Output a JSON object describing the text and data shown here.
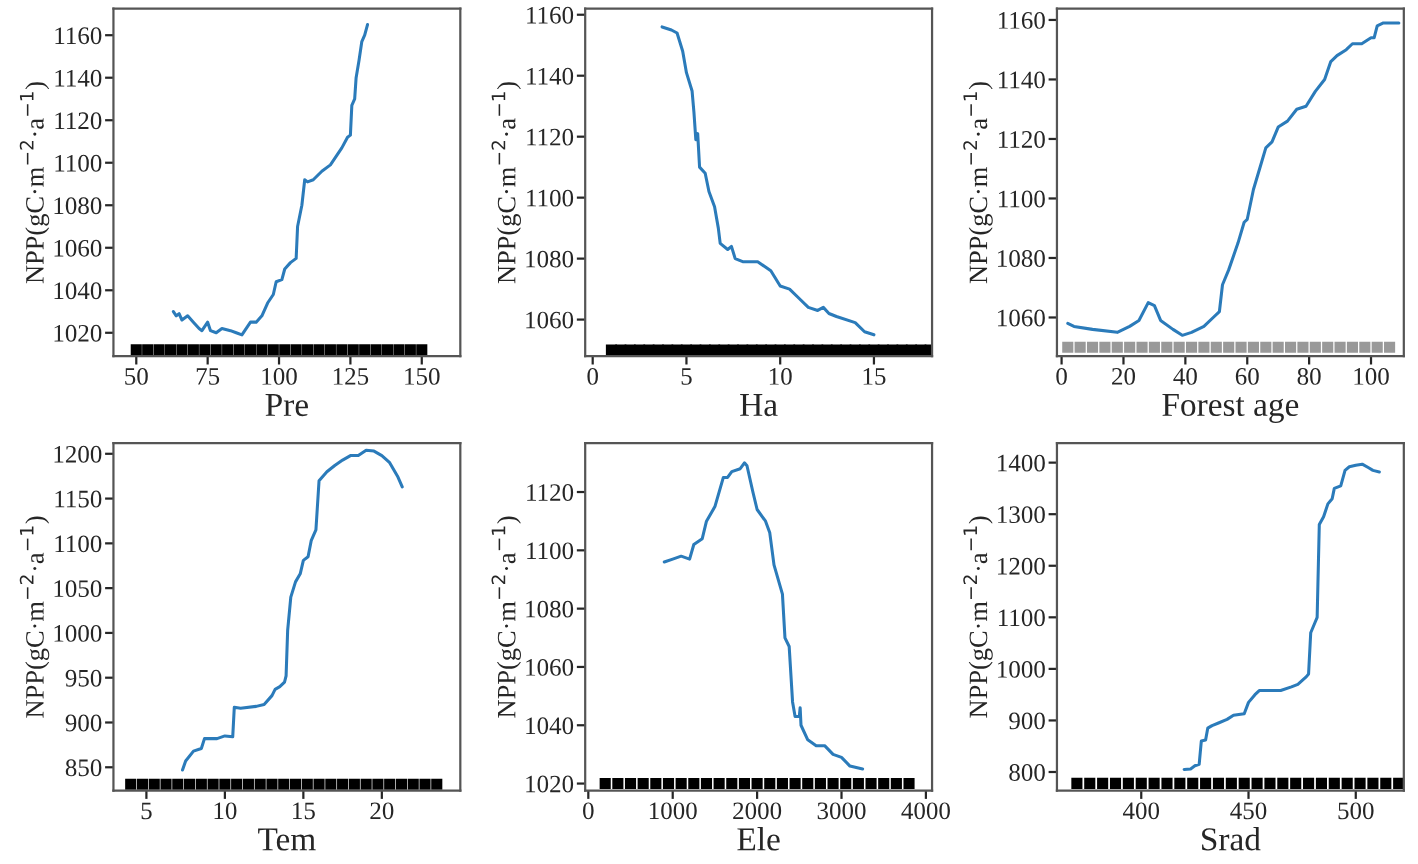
{
  "chart_data": [
    {
      "type": "line",
      "xlabel": "Pre",
      "ylabel": "NPP(gC·m$^{−2}$·a$^{−1}$)",
      "xlim": [
        42,
        163.5
      ],
      "ylim": [
        1009,
        1172.5
      ],
      "xticks": [
        50,
        75,
        100,
        125,
        150
      ],
      "yticks": [
        1020,
        1040,
        1060,
        1080,
        1100,
        1120,
        1140,
        1160
      ],
      "grid": false,
      "legend": false,
      "series": [
        {
          "color": "#2b7bba",
          "x": [
            63,
            64,
            65,
            66,
            68,
            70,
            72,
            73,
            74,
            75,
            76,
            78,
            80,
            83,
            85,
            87,
            88,
            90,
            92,
            94,
            96,
            98,
            99,
            101,
            102,
            104,
            106,
            106.5,
            108,
            109,
            110,
            112,
            115,
            118,
            120,
            122,
            124,
            125,
            125.5,
            126.5,
            127,
            128,
            129,
            130,
            131
          ],
          "values": [
            1030,
            1028,
            1029,
            1026,
            1028,
            1025,
            1022,
            1021,
            1023,
            1025,
            1021,
            1020,
            1022,
            1021,
            1020,
            1019,
            1021,
            1025,
            1025,
            1028,
            1034,
            1038,
            1044,
            1045,
            1050,
            1053,
            1055,
            1070,
            1080,
            1092,
            1091,
            1092,
            1096,
            1099,
            1103,
            1107,
            1112,
            1113,
            1127,
            1130,
            1140,
            1148,
            1157,
            1160,
            1165
          ]
        },
        {
          "type": "scatter",
          "marker": "square",
          "color": "#000000",
          "x": [
            50,
            54,
            58,
            62,
            66,
            70,
            74,
            78,
            82,
            86,
            90,
            94,
            98,
            102,
            106,
            110,
            114,
            118,
            122,
            126,
            130,
            134,
            138,
            142,
            146,
            150
          ],
          "values": [
            1012,
            1012,
            1012,
            1012,
            1012,
            1012,
            1012,
            1012,
            1012,
            1012,
            1012,
            1012,
            1012,
            1012,
            1012,
            1012,
            1012,
            1012,
            1012,
            1012,
            1012,
            1012,
            1012,
            1012,
            1012,
            1012
          ]
        }
      ]
    },
    {
      "type": "line",
      "xlabel": "Ha",
      "ylabel": "NPP(gC·m$^{−2}$·a$^{−1}$)",
      "xlim": [
        -0.4,
        18.1
      ],
      "ylim": [
        1048,
        1162
      ],
      "xticks": [
        0,
        5,
        10,
        15
      ],
      "yticks": [
        1060,
        1080,
        1100,
        1120,
        1140,
        1160
      ],
      "grid": false,
      "legend": false,
      "series": [
        {
          "color": "#2b7bba",
          "x": [
            3.7,
            4.2,
            4.5,
            4.8,
            5,
            5.3,
            5.4,
            5.5,
            5.6,
            5.7,
            6,
            6.2,
            6.5,
            6.7,
            6.8,
            7.2,
            7.4,
            7.6,
            8,
            8.8,
            9.5,
            10,
            10.5,
            11,
            11.5,
            12,
            12.3,
            12.6,
            13,
            14,
            14.5,
            15
          ],
          "values": [
            1156,
            1155,
            1154,
            1148,
            1141,
            1135,
            1128,
            1119,
            1121,
            1110,
            1108,
            1102,
            1097,
            1090,
            1085,
            1083,
            1084,
            1080,
            1079,
            1079,
            1076,
            1071,
            1070,
            1067,
            1064,
            1063,
            1064,
            1062,
            1061,
            1059,
            1056,
            1055
          ]
        },
        {
          "type": "scatter",
          "marker": "square",
          "color": "#000000",
          "x": [
            1,
            1.5,
            2,
            2.5,
            3,
            3.5,
            4,
            4.5,
            5,
            5.5,
            6,
            6.5,
            7,
            7.5,
            8,
            8.5,
            9,
            9.5,
            10,
            10.5,
            11,
            11.5,
            12,
            12.5,
            13,
            13.5,
            14,
            14.5,
            15,
            15.5,
            16,
            16.5,
            17,
            17.5,
            18
          ],
          "values": [
            1050,
            1050,
            1050,
            1050,
            1050,
            1050,
            1050,
            1050,
            1050,
            1050,
            1050,
            1050,
            1050,
            1050,
            1050,
            1050,
            1050,
            1050,
            1050,
            1050,
            1050,
            1050,
            1050,
            1050,
            1050,
            1050,
            1050,
            1050,
            1050,
            1050,
            1050,
            1050,
            1050,
            1050,
            1050
          ]
        }
      ]
    },
    {
      "type": "line",
      "xlabel": "Forest age",
      "ylabel": "NPP(gC·m$^{−2}$·a$^{−1}$)",
      "xlim": [
        -1.5,
        110.6
      ],
      "ylim": [
        1047,
        1163.8
      ],
      "xticks": [
        0,
        20,
        40,
        60,
        80,
        100
      ],
      "yticks": [
        1060,
        1080,
        1100,
        1120,
        1140,
        1160
      ],
      "grid": false,
      "legend": false,
      "series": [
        {
          "color": "#2b7bba",
          "x": [
            2,
            4,
            10,
            18,
            22,
            25,
            28,
            30,
            32,
            36,
            39,
            42,
            46,
            49,
            51,
            52,
            54,
            57,
            59,
            60,
            62,
            64,
            66,
            68,
            70,
            73,
            76,
            79,
            82,
            85,
            87,
            89,
            92,
            94,
            97,
            100,
            101,
            102,
            104,
            109
          ],
          "values": [
            1058,
            1057,
            1056,
            1055,
            1057,
            1059,
            1065,
            1064,
            1059,
            1056,
            1054,
            1055,
            1057,
            1060,
            1062,
            1071,
            1076,
            1085,
            1092,
            1093,
            1103,
            1110,
            1117,
            1119,
            1124,
            1126,
            1130,
            1131,
            1136,
            1140,
            1146,
            1148,
            1150,
            1152,
            1152,
            1154,
            1154,
            1158,
            1159,
            1159
          ]
        },
        {
          "type": "scatter",
          "marker": "square",
          "color": "#999999",
          "x": [
            2,
            6,
            10,
            14,
            18,
            22,
            26,
            30,
            34,
            38,
            42,
            46,
            50,
            54,
            58,
            62,
            66,
            70,
            74,
            78,
            82,
            86,
            90,
            94,
            98,
            102,
            106
          ],
          "values": [
            1050,
            1050,
            1050,
            1050,
            1050,
            1050,
            1050,
            1050,
            1050,
            1050,
            1050,
            1050,
            1050,
            1050,
            1050,
            1050,
            1050,
            1050,
            1050,
            1050,
            1050,
            1050,
            1050,
            1050,
            1050,
            1050,
            1050
          ]
        }
      ]
    },
    {
      "type": "line",
      "xlabel": "Tem",
      "ylabel": "NPP(gC·m$^{−2}$·a$^{−1}$)",
      "xlim": [
        2.9,
        25
      ],
      "ylim": [
        824,
        1212
      ],
      "xticks": [
        5,
        10,
        15,
        20
      ],
      "yticks": [
        850,
        900,
        950,
        1000,
        1050,
        1100,
        1150,
        1200
      ],
      "grid": false,
      "legend": false,
      "series": [
        {
          "color": "#2b7bba",
          "x": [
            7.3,
            7.5,
            8,
            8.5,
            8.7,
            9.5,
            10,
            10.5,
            10.6,
            11,
            12,
            12.5,
            13,
            13.2,
            13.5,
            13.8,
            13.9,
            14,
            14.2,
            14.5,
            14.8,
            15,
            15.3,
            15.5,
            15.8,
            16,
            16.5,
            17,
            17.5,
            18,
            18.5,
            19,
            19.5,
            20,
            20.5,
            21,
            21.3
          ],
          "values": [
            847,
            857,
            868,
            871,
            882,
            882,
            885,
            884,
            917,
            916,
            918,
            920,
            930,
            937,
            940,
            945,
            952,
            1003,
            1040,
            1057,
            1066,
            1081,
            1085,
            1103,
            1115,
            1170,
            1180,
            1187,
            1193,
            1198,
            1198,
            1204,
            1203,
            1198,
            1190,
            1175,
            1163
          ]
        },
        {
          "type": "scatter",
          "marker": "square",
          "color": "#000000",
          "x": [
            4,
            4.75,
            5.5,
            6.25,
            7,
            7.75,
            8.5,
            9.25,
            10,
            10.75,
            11.5,
            12.25,
            13,
            13.75,
            14.5,
            15.25,
            16,
            16.75,
            17.5,
            18.25,
            19,
            19.75,
            20.5,
            21.25,
            22,
            22.75,
            23.5
          ],
          "values": [
            831,
            831,
            831,
            831,
            831,
            831,
            831,
            831,
            831,
            831,
            831,
            831,
            831,
            831,
            831,
            831,
            831,
            831,
            831,
            831,
            831,
            831,
            831,
            831,
            831,
            831,
            831
          ]
        }
      ]
    },
    {
      "type": "line",
      "xlabel": "Ele",
      "ylabel": "NPP(gC·m$^{−2}$·a$^{−1}$)",
      "xlim": [
        -37,
        4073
      ],
      "ylim": [
        1017.6,
        1136.8
      ],
      "xticks": [
        0,
        1000,
        2000,
        3000,
        4000
      ],
      "yticks": [
        1020,
        1040,
        1060,
        1080,
        1100,
        1120
      ],
      "grid": false,
      "legend": false,
      "series": [
        {
          "color": "#2b7bba",
          "x": [
            900,
            1000,
            1100,
            1200,
            1250,
            1350,
            1400,
            1500,
            1600,
            1650,
            1700,
            1800,
            1850,
            1880,
            1950,
            2000,
            2100,
            2150,
            2200,
            2300,
            2330,
            2380,
            2420,
            2450,
            2500,
            2510,
            2520,
            2600,
            2700,
            2800,
            2900,
            3000,
            3100,
            3250
          ],
          "values": [
            1096,
            1097,
            1098,
            1097,
            1102,
            1104,
            1110,
            1115,
            1125,
            1125,
            1127,
            1128,
            1130,
            1129,
            1120,
            1114,
            1110,
            1106,
            1095,
            1085,
            1070,
            1067,
            1048,
            1043,
            1043,
            1046,
            1040,
            1035,
            1033,
            1033,
            1030,
            1029,
            1026,
            1025
          ]
        },
        {
          "type": "scatter",
          "marker": "square",
          "color": "#000000",
          "x": [
            200,
            350,
            500,
            650,
            800,
            950,
            1100,
            1250,
            1400,
            1550,
            1700,
            1850,
            2000,
            2150,
            2300,
            2450,
            2600,
            2750,
            2900,
            3050,
            3200,
            3350,
            3500,
            3650,
            3800
          ],
          "values": [
            1020,
            1020,
            1020,
            1020,
            1020,
            1020,
            1020,
            1020,
            1020,
            1020,
            1020,
            1020,
            1020,
            1020,
            1020,
            1020,
            1020,
            1020,
            1020,
            1020,
            1020,
            1020,
            1020,
            1020,
            1020
          ]
        }
      ]
    },
    {
      "type": "line",
      "xlabel": "Srad",
      "ylabel": "NPP(gC·m$^{−2}$·a$^{−1}$)",
      "xlim": [
        360.7,
        522.4
      ],
      "ylim": [
        764,
        1438
      ],
      "xticks": [
        400,
        450,
        500
      ],
      "yticks": [
        800,
        900,
        1000,
        1100,
        1200,
        1300,
        1400
      ],
      "grid": false,
      "legend": false,
      "series": [
        {
          "color": "#2b7bba",
          "x": [
            420,
            423,
            425,
            427,
            428,
            430,
            431,
            433,
            436,
            440,
            443,
            448,
            450,
            453,
            455,
            460,
            465,
            470,
            473,
            477,
            478,
            479,
            481,
            482,
            483,
            485,
            487,
            489,
            490,
            493,
            495,
            497,
            500,
            503,
            506,
            508,
            511
          ],
          "values": [
            805,
            806,
            812,
            815,
            860,
            862,
            885,
            890,
            895,
            902,
            910,
            913,
            935,
            950,
            958,
            958,
            958,
            965,
            970,
            985,
            990,
            1070,
            1090,
            1100,
            1280,
            1295,
            1320,
            1330,
            1350,
            1355,
            1385,
            1392,
            1395,
            1397,
            1390,
            1385,
            1382
          ]
        },
        {
          "type": "scatter",
          "marker": "square",
          "color": "#000000",
          "x": [
            370,
            376,
            382,
            388,
            394,
            400,
            406,
            412,
            418,
            424,
            430,
            436,
            442,
            448,
            454,
            460,
            466,
            472,
            478,
            484,
            490,
            496,
            502,
            508,
            514,
            520
          ],
          "values": [
            778,
            778,
            778,
            778,
            778,
            778,
            778,
            778,
            778,
            778,
            778,
            778,
            778,
            778,
            778,
            778,
            778,
            778,
            778,
            778,
            778,
            778,
            778,
            778,
            778,
            778
          ]
        }
      ]
    }
  ]
}
